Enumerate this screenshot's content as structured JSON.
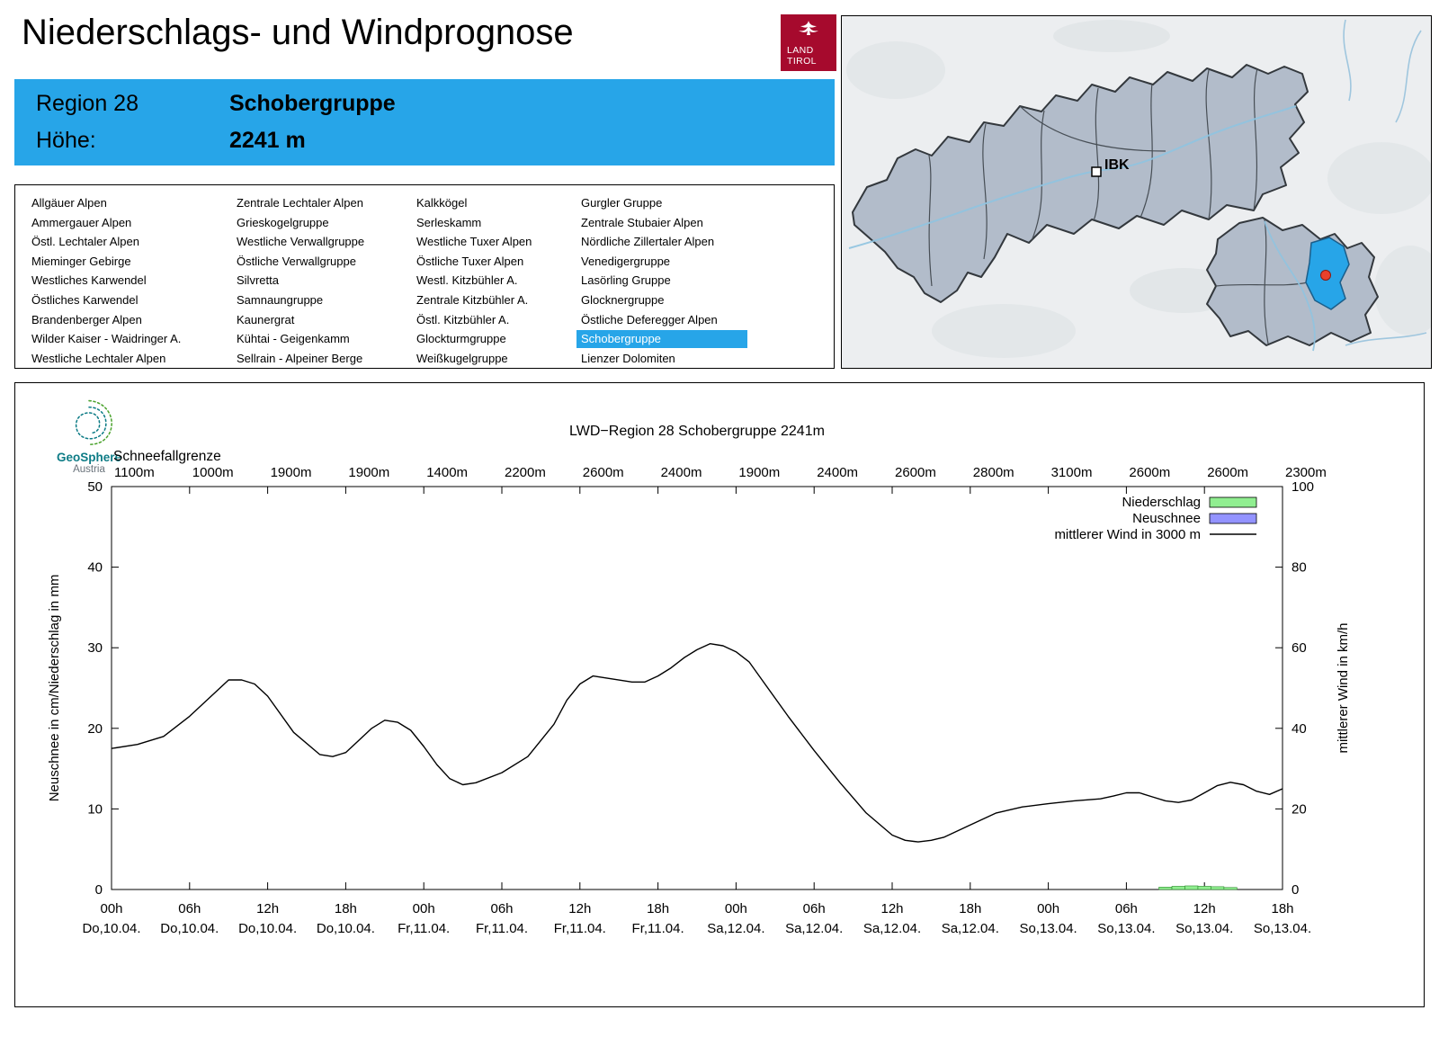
{
  "page": {
    "title": "Niederschlags- und Windprognose"
  },
  "logo": {
    "line1": "LAND",
    "line2": "TIROL"
  },
  "region_header": {
    "region_label": "Region 28",
    "region_name": "Schobergruppe",
    "altitude_label": "Höhe:",
    "altitude_value": "2241 m"
  },
  "region_list": {
    "selected": "Schobergruppe",
    "columns": [
      [
        "Allgäuer Alpen",
        "Ammergauer Alpen",
        "Östl. Lechtaler Alpen",
        "Mieminger Gebirge",
        "Westliches Karwendel",
        "Östliches Karwendel",
        "Brandenberger Alpen",
        "Wilder Kaiser - Waidringer A.",
        "Westliche Lechtaler Alpen"
      ],
      [
        "Zentrale Lechtaler Alpen",
        "Grieskogelgruppe",
        "Westliche Verwallgruppe",
        "Östliche Verwallgruppe",
        "Silvretta",
        "Samnaungruppe",
        "Kaunergrat",
        "Kühtai - Geigenkamm",
        "Sellrain - Alpeiner Berge"
      ],
      [
        "Kalkkögel",
        "Serleskamm",
        "Westliche Tuxer Alpen",
        "Östliche Tuxer Alpen",
        "Westl. Kitzbühler A.",
        "Zentrale Kitzbühler A.",
        "Östl. Kitzbühler A.",
        "Glockturmgruppe",
        "Weißkugelgruppe"
      ],
      [
        "Gurgler Gruppe",
        "Zentrale Stubaier Alpen",
        "Nördliche Zillertaler Alpen",
        "Venedigergruppe",
        "Lasörling Gruppe",
        "Glocknergruppe",
        "Östliche Deferegger Alpen",
        "Schobergruppe",
        "Lienzer Dolomiten"
      ]
    ]
  },
  "map": {
    "city_label": "IBK"
  },
  "branding": {
    "geosphere_line1": "GeoSphere",
    "geosphere_line2": "Austria"
  },
  "colors": {
    "accent_blue": "#27A5E8",
    "logo_red": "#A60A2D",
    "precip_green": "#90EE90",
    "snow_blue": "#9393FF",
    "wind_line": "#000000",
    "marker_red": "#E8412C"
  },
  "chart_data": {
    "type": "line",
    "title": "LWD−Region 28 Schobergruppe 2241m",
    "snowline_label": "Schneefallgrenze",
    "snowline_values": [
      "1100m",
      "1000m",
      "1900m",
      "1900m",
      "1400m",
      "2200m",
      "2600m",
      "2400m",
      "1900m",
      "2400m",
      "2600m",
      "2800m",
      "3100m",
      "2600m",
      "2600m",
      "2300m"
    ],
    "ylabel_left": "Neuschnee in cm/Niederschlag in mm",
    "ylabel_right": "mittlerer Wind in km/h",
    "ylim_left": [
      0,
      50
    ],
    "ylim_right": [
      0,
      100
    ],
    "yticks_left": [
      0,
      10,
      20,
      30,
      40,
      50
    ],
    "yticks_right": [
      0,
      20,
      40,
      60,
      80,
      100
    ],
    "x_hours_range": [
      0,
      90
    ],
    "xticks": [
      {
        "hour": 0,
        "time": "00h",
        "date": "Do,10.04."
      },
      {
        "hour": 6,
        "time": "06h",
        "date": "Do,10.04."
      },
      {
        "hour": 12,
        "time": "12h",
        "date": "Do,10.04."
      },
      {
        "hour": 18,
        "time": "18h",
        "date": "Do,10.04."
      },
      {
        "hour": 24,
        "time": "00h",
        "date": "Fr,11.04."
      },
      {
        "hour": 30,
        "time": "06h",
        "date": "Fr,11.04."
      },
      {
        "hour": 36,
        "time": "12h",
        "date": "Fr,11.04."
      },
      {
        "hour": 42,
        "time": "18h",
        "date": "Fr,11.04."
      },
      {
        "hour": 48,
        "time": "00h",
        "date": "Sa,12.04."
      },
      {
        "hour": 54,
        "time": "06h",
        "date": "Sa,12.04."
      },
      {
        "hour": 60,
        "time": "12h",
        "date": "Sa,12.04."
      },
      {
        "hour": 66,
        "time": "18h",
        "date": "Sa,12.04."
      },
      {
        "hour": 72,
        "time": "00h",
        "date": "So,13.04."
      },
      {
        "hour": 78,
        "time": "06h",
        "date": "So,13.04."
      },
      {
        "hour": 84,
        "time": "12h",
        "date": "So,13.04."
      },
      {
        "hour": 90,
        "time": "18h",
        "date": "So,13.04."
      }
    ],
    "legend": [
      {
        "label": "Niederschlag",
        "type": "box",
        "color": "#90EE90"
      },
      {
        "label": "Neuschnee",
        "type": "box",
        "color": "#9393FF"
      },
      {
        "label": "mittlerer Wind in 3000 m",
        "type": "line",
        "color": "#000000"
      }
    ],
    "wind_series": {
      "name": "mittlerer Wind in 3000 m",
      "axis": "right",
      "x_hours": [
        0,
        2,
        4,
        6,
        8,
        9,
        10,
        11,
        12,
        14,
        16,
        17,
        18,
        19,
        20,
        21,
        22,
        23,
        24,
        25,
        26,
        27,
        28,
        30,
        32,
        34,
        35,
        36,
        37,
        38,
        40,
        41,
        42,
        43,
        44,
        45,
        46,
        47,
        48,
        49,
        50,
        52,
        54,
        56,
        58,
        60,
        61,
        62,
        63,
        64,
        66,
        68,
        70,
        72,
        74,
        76,
        77,
        78,
        79,
        80,
        81,
        82,
        83,
        84,
        85,
        86,
        87,
        88,
        89,
        90
      ],
      "values_kmh": [
        35,
        36,
        38,
        43,
        49,
        52,
        52,
        51,
        48,
        39,
        33.5,
        33,
        34,
        37,
        40,
        42,
        41.5,
        39.5,
        35.5,
        31,
        27.5,
        26,
        26.5,
        29,
        33,
        41,
        47,
        51,
        53,
        52.5,
        51.5,
        51.5,
        53,
        55,
        57.5,
        59.5,
        61,
        60.5,
        59,
        56.5,
        52,
        43,
        34.5,
        26.5,
        19,
        13.5,
        12.2,
        11.8,
        12.2,
        13,
        16,
        19,
        20.5,
        21.3,
        22,
        22.5,
        23.2,
        24,
        24,
        23,
        22,
        21.6,
        22.2,
        24,
        25.8,
        26.6,
        26,
        24.4,
        23.6,
        25
      ]
    },
    "precip_bars_mm": [
      {
        "hour": 81,
        "value": 0.3
      },
      {
        "hour": 82,
        "value": 0.4
      },
      {
        "hour": 83,
        "value": 0.45
      },
      {
        "hour": 84,
        "value": 0.4
      },
      {
        "hour": 85,
        "value": 0.35
      },
      {
        "hour": 86,
        "value": 0.25
      }
    ],
    "neuschnee_bars_cm": []
  }
}
